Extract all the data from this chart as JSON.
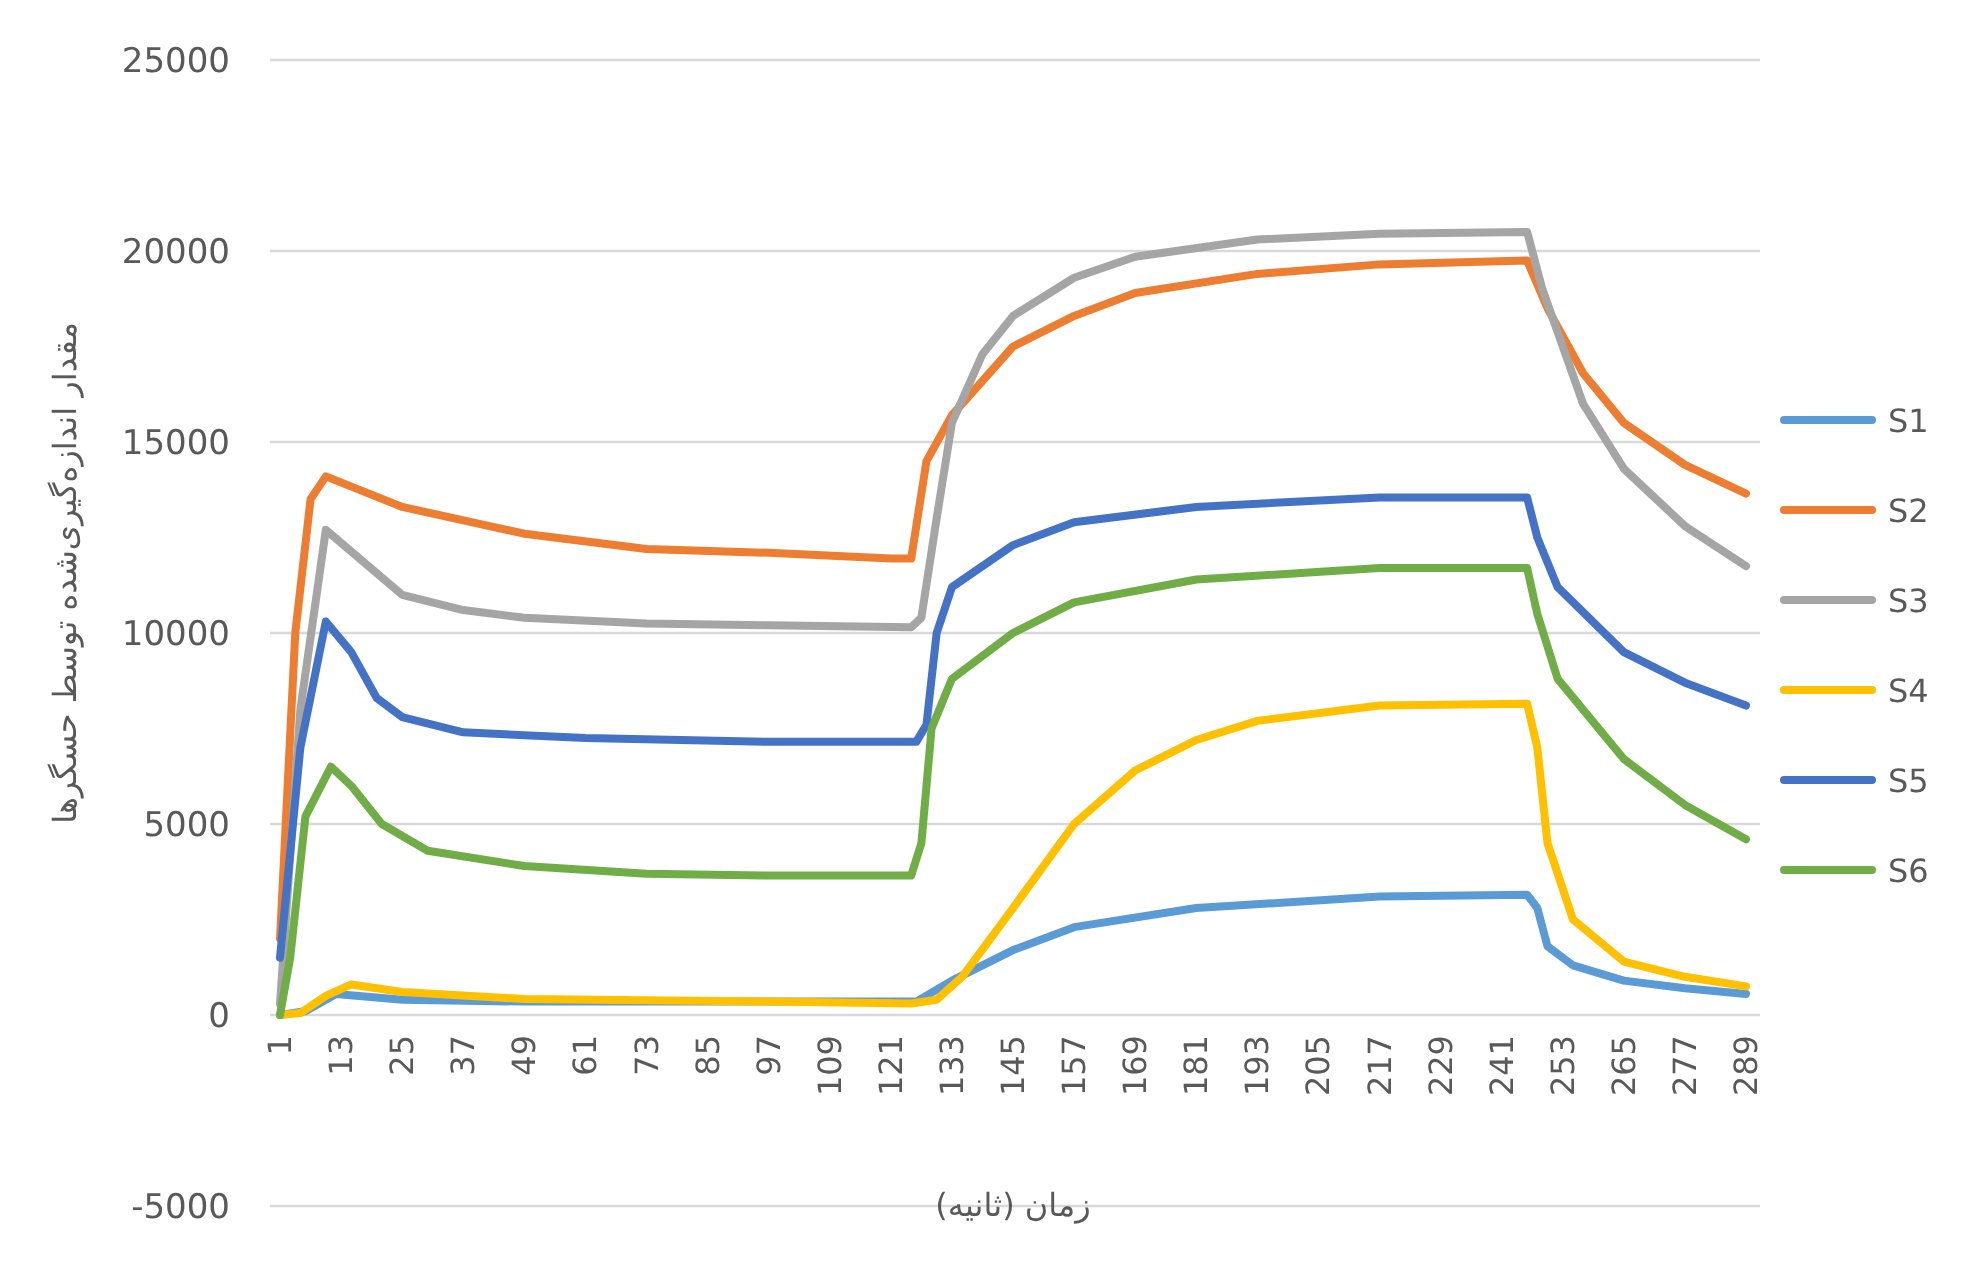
{
  "chart_data": {
    "type": "line",
    "xlabel": "زمان (ثانیه)",
    "ylabel": "مقدار اندازه‌گیری‌شده توسط حسگرها",
    "xlim": [
      1,
      289
    ],
    "xticks": [
      1,
      13,
      25,
      37,
      49,
      61,
      73,
      85,
      97,
      109,
      121,
      133,
      145,
      157,
      169,
      181,
      193,
      205,
      217,
      229,
      241,
      253,
      265,
      277,
      289
    ],
    "ylim": [
      -5000,
      25000
    ],
    "yticks": [
      -5000,
      0,
      5000,
      10000,
      15000,
      20000,
      25000
    ],
    "grid": "y",
    "legend": "right",
    "marker": "none",
    "line_style": "solid",
    "series": [
      {
        "name": "S1",
        "color": "#5b9bd5",
        "x": [
          1,
          6,
          12,
          25,
          49,
          97,
          126,
          133,
          145,
          157,
          181,
          217,
          246,
          248,
          250,
          255,
          265,
          277,
          289
        ],
        "values": [
          0,
          100,
          550,
          400,
          350,
          350,
          350,
          900,
          1700,
          2300,
          2800,
          3100,
          3150,
          2800,
          1800,
          1300,
          900,
          700,
          550
        ]
      },
      {
        "name": "S2",
        "color": "#ed7d31",
        "x": [
          1,
          4,
          7,
          10,
          25,
          49,
          73,
          97,
          121,
          125,
          128,
          133,
          145,
          157,
          169,
          193,
          217,
          246,
          250,
          257,
          265,
          277,
          289
        ],
        "values": [
          2000,
          10000,
          13500,
          14100,
          13300,
          12600,
          12200,
          12100,
          11950,
          11950,
          14500,
          15700,
          17500,
          18300,
          18900,
          19400,
          19650,
          19750,
          18500,
          16800,
          15500,
          14400,
          13650
        ]
      },
      {
        "name": "S3",
        "color": "#a5a5a5",
        "x": [
          1,
          5,
          10,
          25,
          37,
          49,
          73,
          97,
          125,
          127,
          130,
          133,
          139,
          145,
          157,
          169,
          193,
          217,
          246,
          249,
          257,
          265,
          277,
          289
        ],
        "values": [
          300,
          8000,
          12700,
          11000,
          10600,
          10400,
          10250,
          10200,
          10150,
          10400,
          13000,
          15500,
          17300,
          18300,
          19300,
          19850,
          20300,
          20450,
          20500,
          19000,
          16000,
          14300,
          12800,
          11750
        ]
      },
      {
        "name": "S4",
        "color": "#ffc000",
        "x": [
          1,
          5,
          10,
          15,
          25,
          49,
          97,
          125,
          130,
          135,
          145,
          157,
          169,
          181,
          193,
          217,
          246,
          248,
          250,
          255,
          265,
          277,
          289
        ],
        "values": [
          0,
          50,
          500,
          800,
          600,
          420,
          350,
          300,
          400,
          1000,
          2800,
          5000,
          6400,
          7200,
          7700,
          8100,
          8150,
          7000,
          4500,
          2500,
          1400,
          1000,
          750
        ]
      },
      {
        "name": "S5",
        "color": "#4472c4",
        "x": [
          1,
          5,
          10,
          15,
          20,
          25,
          37,
          61,
          97,
          126,
          128,
          130,
          133,
          145,
          157,
          181,
          217,
          246,
          248,
          252,
          265,
          277,
          289
        ],
        "values": [
          1500,
          7000,
          10300,
          9500,
          8300,
          7800,
          7400,
          7250,
          7150,
          7150,
          7600,
          10000,
          11200,
          12300,
          12900,
          13300,
          13550,
          13550,
          12500,
          11200,
          9500,
          8700,
          8100
        ]
      },
      {
        "name": "S6",
        "color": "#70ad47",
        "x": [
          1,
          3,
          6,
          11,
          15,
          21,
          30,
          49,
          73,
          97,
          125,
          127,
          129,
          133,
          145,
          157,
          181,
          217,
          246,
          248,
          252,
          265,
          277,
          289
        ],
        "values": [
          0,
          1500,
          5200,
          6500,
          6000,
          5000,
          4300,
          3900,
          3700,
          3650,
          3650,
          4500,
          7500,
          8800,
          10000,
          10800,
          11400,
          11700,
          11700,
          10500,
          8800,
          6700,
          5500,
          4600
        ]
      }
    ]
  }
}
